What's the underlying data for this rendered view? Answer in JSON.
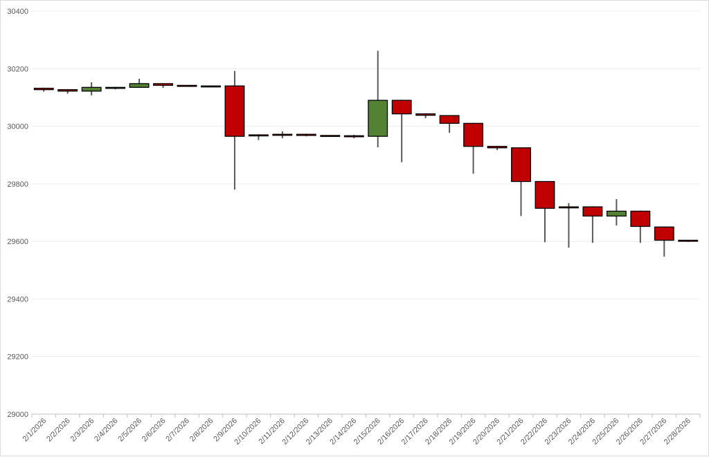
{
  "chart_data": {
    "type": "candlestick",
    "title": "",
    "xlabel": "",
    "ylabel": "",
    "ylim": [
      29000,
      30400
    ],
    "y_ticks": [
      29000,
      29200,
      29400,
      29600,
      29800,
      30000,
      30200,
      30400
    ],
    "grid": true,
    "legend": "none",
    "colors": {
      "up": "#548235",
      "down": "#c00000",
      "wick": "#595959",
      "border": "#000000",
      "grid": "#ececec"
    },
    "categories": [
      "2/1/2026",
      "2/2/2026",
      "2/3/2026",
      "2/4/2026",
      "2/5/2026",
      "2/6/2026",
      "2/7/2026",
      "2/8/2026",
      "2/9/2026",
      "2/10/2026",
      "2/11/2026",
      "2/12/2026",
      "2/13/2026",
      "2/14/2026",
      "2/15/2026",
      "2/16/2026",
      "2/17/2026",
      "2/18/2026",
      "2/19/2026",
      "2/20/2026",
      "2/21/2026",
      "2/22/2026",
      "2/23/2026",
      "2/24/2026",
      "2/25/2026",
      "2/26/2026",
      "2/27/2026",
      "2/28/2026"
    ],
    "open": [
      30132,
      30127,
      30122,
      30135,
      30135,
      30148,
      30142,
      30140,
      30140,
      29970,
      29972,
      29972,
      29968,
      29967,
      29965,
      30090,
      30043,
      30037,
      30010,
      29930,
      29925,
      29808,
      29720,
      29720,
      29688,
      29705,
      29650,
      29604
    ],
    "high": [
      30134,
      30128,
      30153,
      30137,
      30165,
      30148,
      30142,
      30140,
      30192,
      29972,
      29982,
      29974,
      29968,
      29970,
      30262,
      30092,
      30045,
      30037,
      30012,
      29932,
      29925,
      29808,
      29733,
      29722,
      29747,
      29707,
      29652,
      29604
    ],
    "low": [
      30120,
      30113,
      30107,
      30128,
      30135,
      30133,
      30140,
      30138,
      29780,
      29952,
      29958,
      29965,
      29966,
      29958,
      29927,
      29875,
      30028,
      29977,
      29835,
      29917,
      29688,
      29597,
      29578,
      29595,
      29655,
      29595,
      29547,
      29598
    ],
    "close": [
      30127,
      30122,
      30135,
      30135,
      30148,
      30142,
      30140,
      30140,
      29965,
      29967,
      29970,
      29968,
      29967,
      29965,
      30090,
      30043,
      30038,
      30010,
      29930,
      29925,
      29808,
      29715,
      29717,
      29688,
      29705,
      29652,
      29604,
      29602
    ]
  }
}
